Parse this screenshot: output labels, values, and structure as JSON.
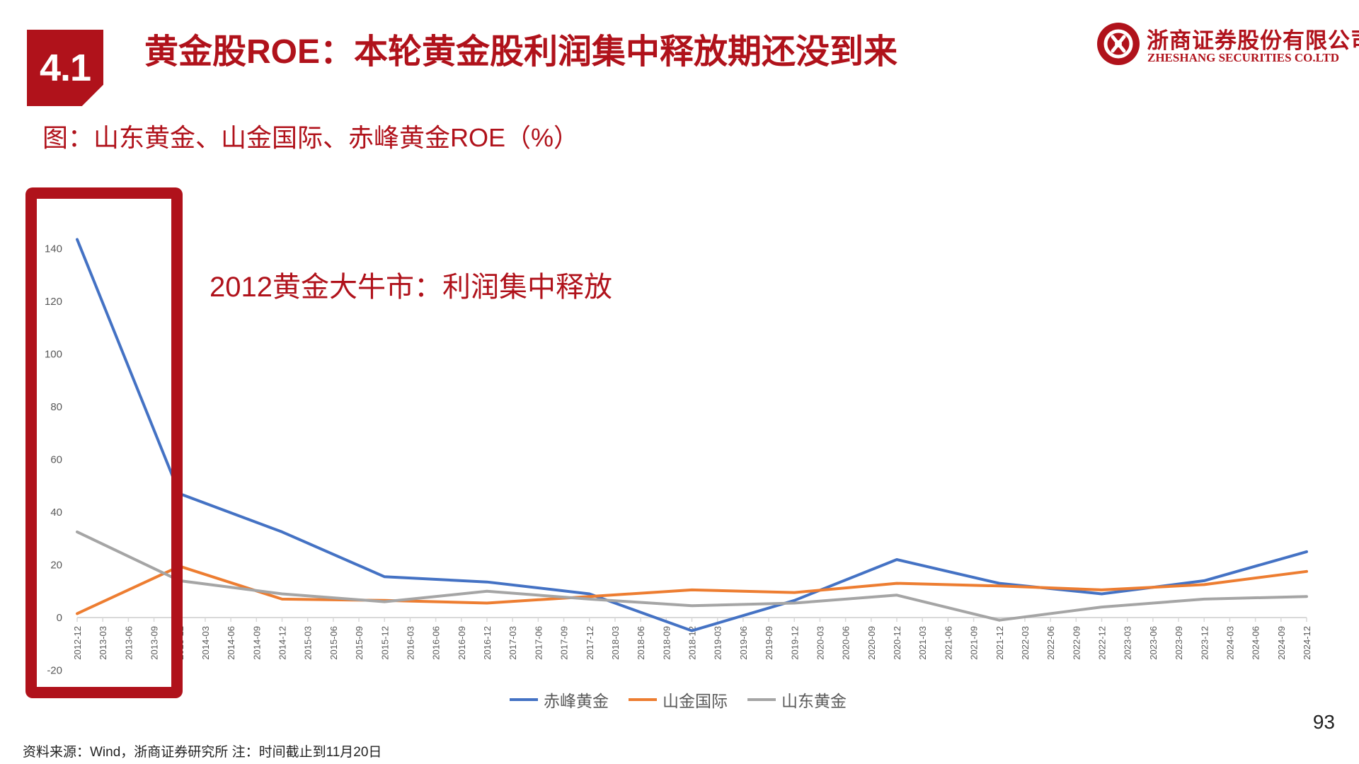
{
  "section": {
    "number": "4.1"
  },
  "slide_title": "黄金股ROE：本轮黄金股利润集中释放期还没到来",
  "logo": {
    "cn": "浙商证券股份有限公司",
    "en": "ZHESHANG SECURITIES CO.LTD",
    "color": "#b0121b"
  },
  "chart_title": "图：山东黄金、山金国际、赤峰黄金ROE（%）",
  "annotation": "2012黄金大牛市：利润集中释放",
  "page_number": "93",
  "footnote": "资料来源：Wind，浙商证券研究所   注：时间截止到11月20日",
  "colors": {
    "accent": "#b0121b"
  },
  "chart_data": {
    "type": "line",
    "title": "",
    "xlabel": "",
    "ylabel": "",
    "ylim": [
      -20,
      150
    ],
    "yticks": [
      -20,
      0,
      20,
      40,
      60,
      80,
      100,
      120,
      140
    ],
    "grid": false,
    "legend_position": "bottom",
    "categories": [
      "2012-12",
      "2013-03",
      "2013-06",
      "2013-09",
      "2013-12",
      "2014-03",
      "2014-06",
      "2014-09",
      "2014-12",
      "2015-03",
      "2015-06",
      "2015-09",
      "2015-12",
      "2016-03",
      "2016-06",
      "2016-09",
      "2016-12",
      "2017-03",
      "2017-06",
      "2017-09",
      "2017-12",
      "2018-03",
      "2018-06",
      "2018-09",
      "2018-12",
      "2019-03",
      "2019-06",
      "2019-09",
      "2019-12",
      "2020-03",
      "2020-06",
      "2020-09",
      "2020-12",
      "2021-03",
      "2021-06",
      "2021-09",
      "2021-12",
      "2022-03",
      "2022-06",
      "2022-09",
      "2022-12",
      "2023-03",
      "2023-06",
      "2023-09",
      "2023-12",
      "2024-03",
      "2024-06",
      "2024-09",
      "2024-12"
    ],
    "series": [
      {
        "name": "赤峰黄金",
        "color": "#4472c4",
        "points": [
          [
            "2012-12",
            143.5
          ],
          [
            "2013-12",
            47
          ],
          [
            "2014-12",
            32.5
          ],
          [
            "2015-12",
            15.5
          ],
          [
            "2016-12",
            13.5
          ],
          [
            "2017-12",
            9
          ],
          [
            "2018-12",
            -5
          ],
          [
            "2019-12",
            6.5
          ],
          [
            "2020-12",
            22
          ],
          [
            "2021-12",
            13
          ],
          [
            "2022-12",
            9
          ],
          [
            "2023-12",
            14
          ],
          [
            "2024-12",
            25
          ]
        ]
      },
      {
        "name": "山金国际",
        "color": "#ed7d31",
        "points": [
          [
            "2012-12",
            1.5
          ],
          [
            "2013-12",
            19.5
          ],
          [
            "2014-12",
            7
          ],
          [
            "2015-12",
            6.5
          ],
          [
            "2016-12",
            5.5
          ],
          [
            "2017-12",
            8
          ],
          [
            "2018-12",
            10.5
          ],
          [
            "2019-12",
            9.5
          ],
          [
            "2020-12",
            13
          ],
          [
            "2021-12",
            12
          ],
          [
            "2022-12",
            10.5
          ],
          [
            "2023-12",
            12.5
          ],
          [
            "2024-12",
            17.5
          ]
        ]
      },
      {
        "name": "山东黄金",
        "color": "#a5a5a5",
        "points": [
          [
            "2012-12",
            32.5
          ],
          [
            "2013-12",
            14
          ],
          [
            "2014-12",
            9
          ],
          [
            "2015-12",
            6
          ],
          [
            "2016-12",
            10
          ],
          [
            "2017-12",
            7
          ],
          [
            "2018-12",
            4.5
          ],
          [
            "2019-12",
            5.5
          ],
          [
            "2020-12",
            8.5
          ],
          [
            "2021-12",
            -1
          ],
          [
            "2022-12",
            4
          ],
          [
            "2023-12",
            7
          ],
          [
            "2024-12",
            8
          ]
        ]
      }
    ]
  }
}
